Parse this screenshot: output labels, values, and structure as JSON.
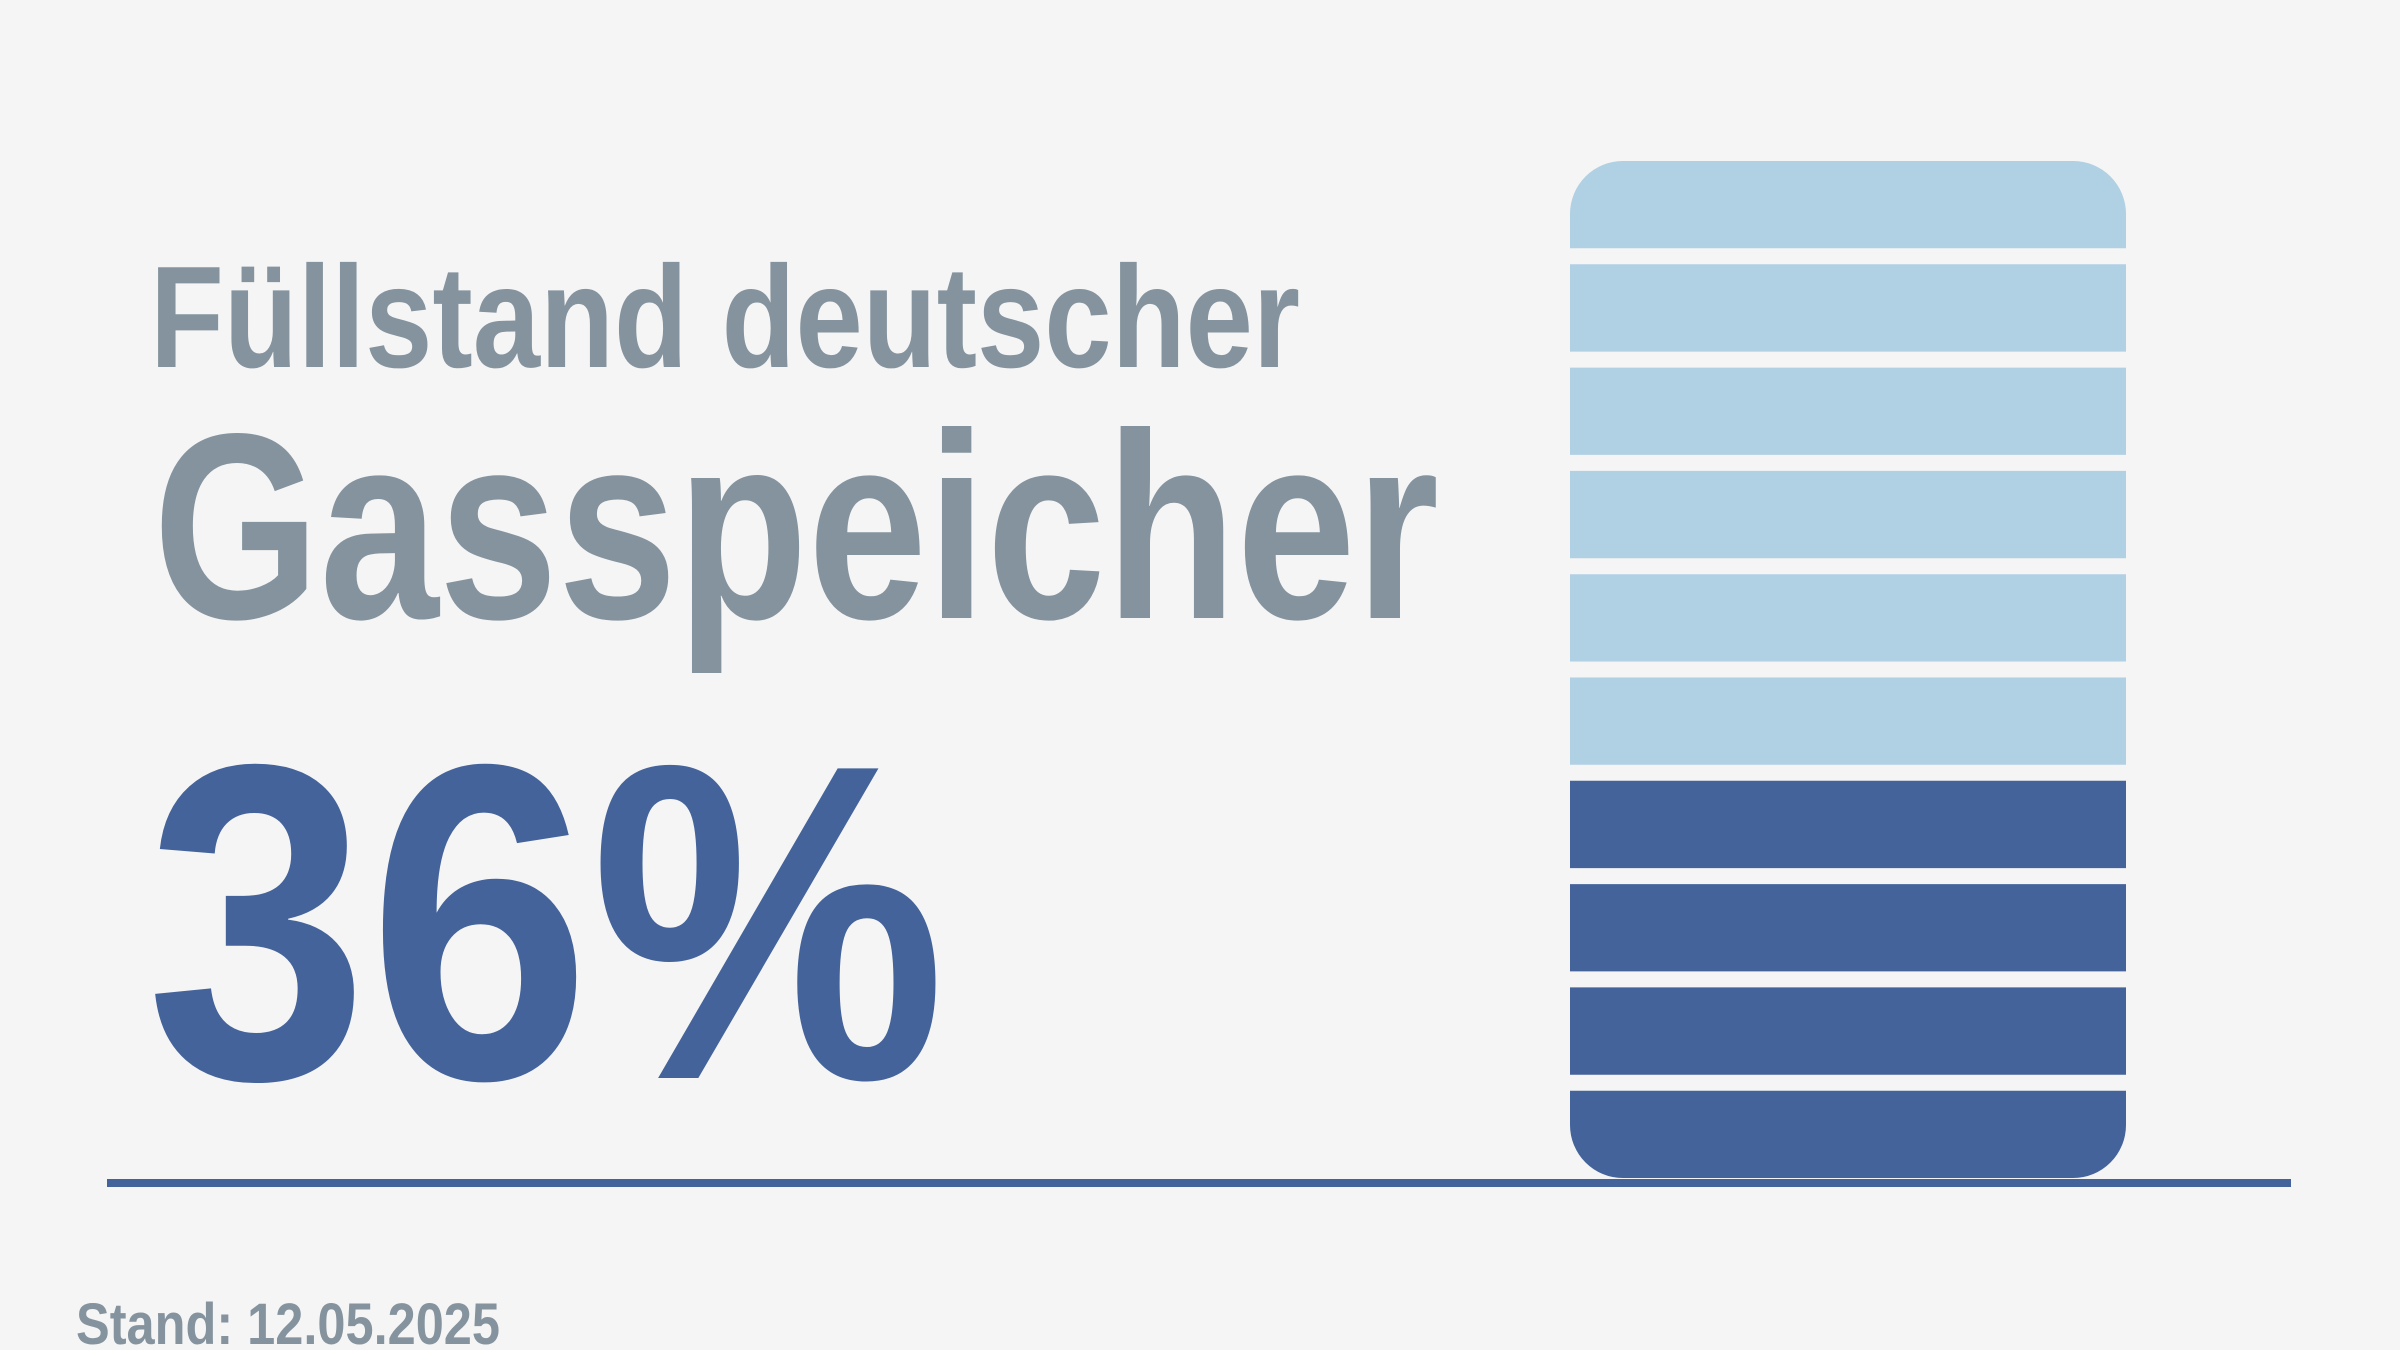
{
  "chart_data": {
    "type": "segment-gauge",
    "title": "Füllstand deutscher",
    "subtitle": "Gasspeicher",
    "value": 36,
    "value_label": "36%",
    "footnote": "Stand: 12.05.2025",
    "segments": 10,
    "filled_segments": 4,
    "color": "#43639a",
    "empty_color": "#b0d0e3",
    "text_color": "#84939e"
  }
}
